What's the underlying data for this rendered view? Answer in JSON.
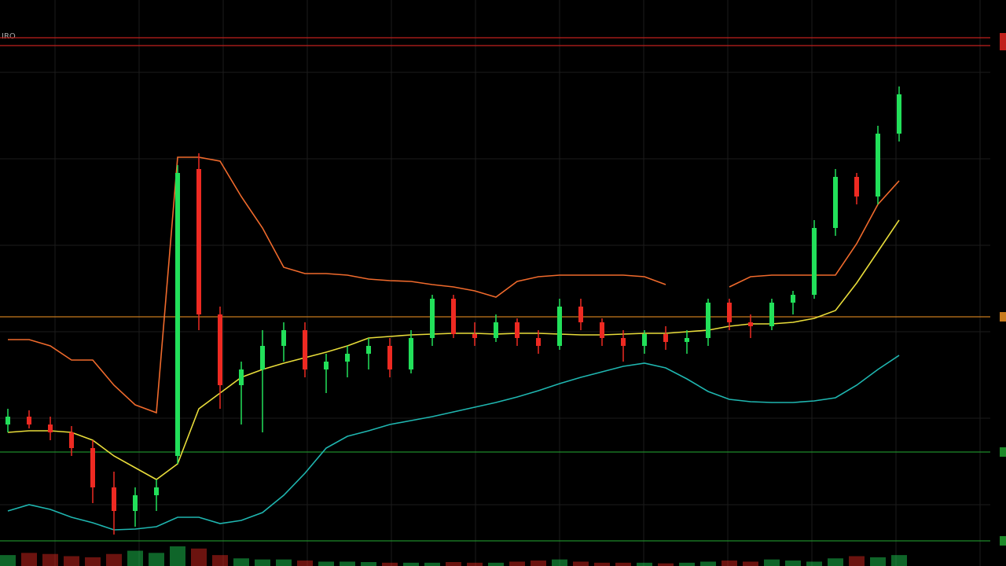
{
  "chart_data": {
    "type": "candlestick",
    "title": "IRO",
    "categories": [
      null,
      null,
      null,
      null,
      null,
      null,
      null,
      null,
      null,
      null,
      null,
      null,
      null,
      null,
      null,
      null,
      null,
      null,
      null,
      null,
      null,
      null,
      null,
      null,
      null,
      null,
      null,
      null,
      null,
      null,
      null,
      null,
      null,
      null,
      null,
      null,
      null,
      null,
      null,
      null,
      null,
      null,
      null
    ],
    "open": [
      180,
      190,
      180,
      170,
      150,
      100,
      70,
      90,
      140,
      505,
      320,
      230,
      250,
      280,
      300,
      250,
      260,
      270,
      280,
      250,
      290,
      340,
      295,
      290,
      310,
      290,
      280,
      330,
      310,
      290,
      280,
      295,
      285,
      290,
      335,
      310,
      305,
      335,
      345,
      430,
      495,
      470,
      550
    ],
    "high": [
      200,
      198,
      190,
      178,
      160,
      120,
      100,
      110,
      510,
      525,
      330,
      260,
      300,
      310,
      310,
      270,
      280,
      290,
      290,
      300,
      345,
      345,
      310,
      320,
      315,
      300,
      340,
      340,
      315,
      300,
      300,
      305,
      300,
      340,
      340,
      320,
      340,
      350,
      440,
      505,
      500,
      560,
      610
    ],
    "low": [
      170,
      175,
      160,
      140,
      80,
      40,
      50,
      70,
      130,
      300,
      200,
      180,
      170,
      260,
      240,
      220,
      240,
      250,
      240,
      245,
      280,
      290,
      280,
      285,
      280,
      270,
      275,
      300,
      280,
      260,
      270,
      275,
      270,
      280,
      300,
      290,
      300,
      320,
      340,
      420,
      460,
      460,
      540
    ],
    "close": [
      190,
      180,
      170,
      150,
      100,
      70,
      90,
      100,
      500,
      320,
      230,
      250,
      280,
      300,
      250,
      260,
      270,
      280,
      250,
      290,
      340,
      295,
      290,
      310,
      290,
      280,
      330,
      310,
      290,
      280,
      295,
      285,
      290,
      335,
      310,
      305,
      335,
      345,
      430,
      495,
      470,
      550,
      600
    ],
    "volume": [
      50,
      60,
      55,
      45,
      40,
      55,
      70,
      60,
      90,
      80,
      50,
      35,
      30,
      30,
      25,
      20,
      20,
      18,
      15,
      15,
      15,
      18,
      15,
      15,
      20,
      25,
      30,
      20,
      15,
      15,
      15,
      12,
      15,
      20,
      25,
      20,
      30,
      25,
      20,
      35,
      45,
      40,
      50
    ],
    "up_color": "#22e05a",
    "down_color": "#ee2a22",
    "lines": [
      {
        "color": "#f06a2c",
        "values": [
          288,
          288,
          280,
          262,
          262,
          230,
          205,
          195,
          520,
          520,
          515,
          470,
          430,
          380,
          372,
          372,
          370,
          365,
          363,
          362,
          358,
          355,
          350,
          342,
          362,
          368,
          370,
          370,
          370,
          370,
          368,
          358,
          null,
          null,
          355,
          368,
          370,
          370,
          370,
          370,
          410,
          460,
          490
        ]
      },
      {
        "color": "#e8dc3a",
        "values": [
          170,
          172,
          172,
          170,
          160,
          140,
          125,
          110,
          130,
          200,
          220,
          240,
          250,
          258,
          265,
          272,
          280,
          290,
          292,
          294,
          295,
          296,
          296,
          295,
          296,
          296,
          295,
          294,
          294,
          295,
          296,
          296,
          298,
          300,
          305,
          308,
          308,
          310,
          315,
          325,
          360,
          400,
          440
        ]
      },
      {
        "color": "#1fb6b0",
        "values": [
          70,
          78,
          72,
          62,
          55,
          46,
          47,
          50,
          62,
          62,
          54,
          58,
          68,
          90,
          118,
          150,
          165,
          172,
          180,
          185,
          190,
          196,
          202,
          208,
          215,
          223,
          232,
          240,
          247,
          254,
          258,
          252,
          238,
          222,
          212,
          209,
          208,
          208,
          210,
          214,
          230,
          250,
          268
        ]
      }
    ],
    "levels": [
      {
        "value": 672,
        "color": "#c0201c"
      },
      {
        "value": 662,
        "color": "#c0201c"
      },
      {
        "value": 317,
        "color": "#c87a1c"
      },
      {
        "value": 145,
        "color": "#1e8a2a"
      },
      {
        "value": 32,
        "color": "#1e8a2a"
      }
    ],
    "ylim": [
      0,
      720
    ],
    "y2lim": [
      0,
      720
    ]
  }
}
